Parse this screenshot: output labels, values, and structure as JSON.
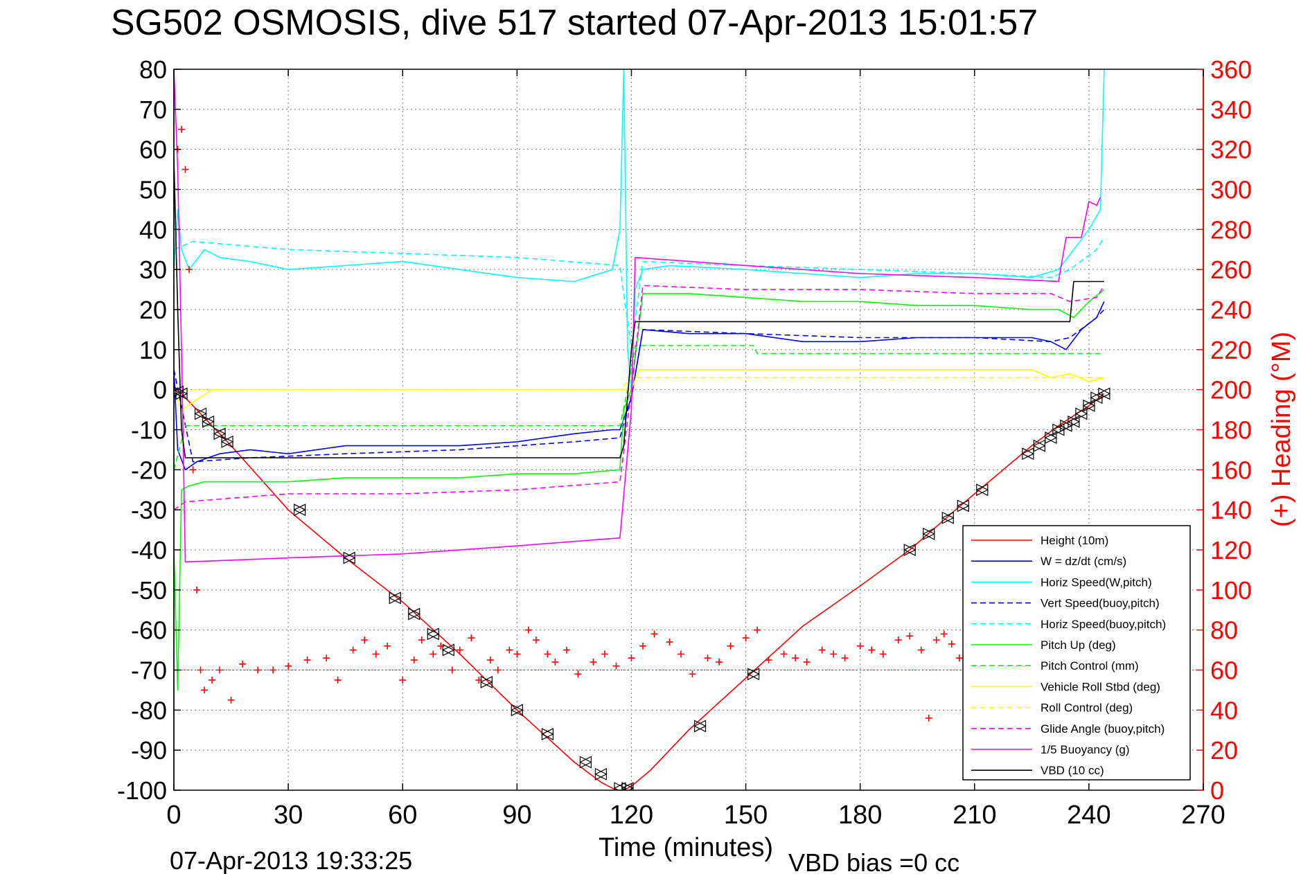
{
  "chart_data": {
    "type": "line",
    "title": "SG502 OSMOSIS, dive 517 started 07-Apr-2013 15:01:57",
    "xlabel": "Time (minutes)",
    "ylabel_right": "(+) Heading (°M)",
    "xlim": [
      0,
      270
    ],
    "ylim": [
      -100,
      80
    ],
    "ylim_right": [
      0,
      360
    ],
    "x_ticks": [
      0,
      30,
      60,
      90,
      120,
      150,
      180,
      210,
      240,
      270
    ],
    "y_ticks": [
      -100,
      -90,
      -80,
      -70,
      -60,
      -50,
      -40,
      -30,
      -20,
      -10,
      0,
      10,
      20,
      30,
      40,
      50,
      60,
      70,
      80
    ],
    "y_ticks_right": [
      0,
      20,
      40,
      60,
      80,
      100,
      120,
      140,
      160,
      180,
      200,
      220,
      240,
      260,
      280,
      300,
      320,
      340,
      360
    ],
    "grid": true,
    "legend_position": "bottom-right",
    "timestamp": "07-Apr-2013 19:33:25",
    "vbd_bias": "VBD bias =0 cc",
    "colors": {
      "red": "#ff0000",
      "blue": "#0000ff",
      "cyan": "#00ffff",
      "green": "#00ff00",
      "yellow": "#ffff00",
      "magenta": "#ff00ff",
      "black": "#000000"
    },
    "series": [
      {
        "name": "Height (10m)",
        "color": "#ff0000",
        "style": "solid",
        "x": [
          0,
          2,
          5,
          10,
          15,
          30,
          45,
          60,
          75,
          90,
          105,
          112,
          116,
          118,
          120,
          125,
          135,
          150,
          165,
          180,
          193,
          205,
          215,
          225,
          232,
          240,
          244
        ],
        "y": [
          0,
          -1,
          -4,
          -9,
          -14,
          -30,
          -42,
          -53,
          -66,
          -80,
          -93,
          -98,
          -100,
          -100,
          -99,
          -95,
          -85,
          -72,
          -59,
          -49,
          -40,
          -30,
          -22,
          -14,
          -9,
          -4,
          -1
        ]
      },
      {
        "name": "W = dz/dt (cm/s)",
        "color": "#0000ff",
        "style": "solid",
        "x": [
          0,
          1,
          3,
          6,
          12,
          20,
          30,
          45,
          60,
          75,
          90,
          105,
          115,
          117,
          120,
          123,
          135,
          150,
          165,
          180,
          195,
          210,
          225,
          230,
          234,
          238,
          242,
          244
        ],
        "y": [
          5,
          -15,
          -20,
          -18,
          -16,
          -15,
          -16,
          -14,
          -14,
          -14,
          -13,
          -11,
          -10,
          -10,
          -2,
          15,
          14,
          14,
          12,
          12,
          13,
          13,
          13,
          12,
          10,
          15,
          18,
          22
        ]
      },
      {
        "name": "Horiz Speed(W,pitch)",
        "color": "#00ffff",
        "style": "solid",
        "x": [
          0,
          1,
          2,
          4,
          8,
          12,
          20,
          30,
          45,
          60,
          75,
          90,
          105,
          115,
          117,
          118,
          119,
          120,
          121,
          123,
          130,
          150,
          165,
          180,
          195,
          210,
          225,
          232,
          236,
          240,
          243,
          244
        ],
        "y": [
          30,
          45,
          35,
          30,
          35,
          33,
          32,
          30,
          31,
          32,
          30,
          28,
          27,
          30,
          40,
          80,
          10,
          0,
          25,
          30,
          31,
          30,
          29,
          28,
          29,
          29,
          28,
          30,
          35,
          40,
          45,
          80
        ]
      },
      {
        "name": "Vert Speed(buoy,pitch)",
        "color": "#0000ff",
        "style": "dashed",
        "x": [
          0,
          5,
          20,
          45,
          75,
          105,
          117,
          120,
          123,
          150,
          180,
          210,
          230,
          235,
          242,
          244
        ],
        "y": [
          5,
          -18,
          -17,
          -16,
          -15,
          -13,
          -12,
          -2,
          15,
          14,
          13,
          13,
          12,
          13,
          18,
          20
        ]
      },
      {
        "name": "Horiz Speed(buoy,pitch)",
        "color": "#00ffff",
        "style": "dashed",
        "x": [
          0,
          5,
          30,
          60,
          90,
          117,
          120,
          123,
          150,
          180,
          210,
          230,
          235,
          242,
          244
        ],
        "y": [
          35,
          37,
          35,
          34,
          33,
          31,
          10,
          32,
          31,
          30,
          29,
          28,
          30,
          35,
          38
        ]
      },
      {
        "name": "Pitch Up (deg)",
        "color": "#00ff00",
        "style": "solid",
        "x": [
          0,
          1,
          2,
          4,
          8,
          15,
          30,
          45,
          60,
          75,
          90,
          105,
          117,
          118,
          120,
          123,
          135,
          150,
          165,
          180,
          195,
          210,
          225,
          232,
          236,
          240,
          244
        ],
        "y": [
          -40,
          -75,
          -25,
          -24,
          -23,
          -23,
          -23,
          -22,
          -22,
          -22,
          -21,
          -21,
          -20,
          -5,
          0,
          24,
          24,
          23,
          22,
          22,
          21,
          21,
          20,
          20,
          18,
          22,
          25
        ]
      },
      {
        "name": "Pitch Control (mm)",
        "color": "#00ff00",
        "style": "dashed",
        "x": [
          0,
          3,
          117,
          119,
          121,
          152,
          153,
          244
        ],
        "y": [
          -20,
          -9,
          -9,
          0,
          11,
          11,
          9,
          9
        ]
      },
      {
        "name": "Vehicle Roll Stbd (deg)",
        "color": "#ffff00",
        "style": "solid",
        "x": [
          0,
          2,
          10,
          30,
          58,
          60,
          75,
          100,
          117,
          120,
          122,
          150,
          180,
          195,
          210,
          225,
          230,
          235,
          240,
          244
        ],
        "y": [
          0,
          -5,
          0,
          0,
          0,
          0,
          0,
          0,
          0,
          0,
          5,
          5,
          5,
          5,
          5,
          5,
          3,
          4,
          2,
          3
        ]
      },
      {
        "name": "Roll Control (deg)",
        "color": "#ffff00",
        "style": "dashed",
        "x": [
          0,
          2,
          117,
          120,
          122,
          150,
          195,
          196,
          244
        ],
        "y": [
          0,
          0,
          0,
          3,
          3,
          3,
          3,
          3,
          3
        ]
      },
      {
        "name": "Glide Angle (buoy,pitch)",
        "color": "#ff00ff",
        "style": "dashed",
        "x": [
          0,
          3,
          30,
          60,
          90,
          117,
          120,
          123,
          150,
          180,
          210,
          230,
          235,
          242,
          244
        ],
        "y": [
          -30,
          -28,
          -26,
          -26,
          -25,
          -23,
          0,
          26,
          25,
          25,
          24,
          24,
          22,
          23,
          26
        ]
      },
      {
        "name": "1/5 Buoyancy (g)",
        "color": "#ff00ff",
        "style": "solid",
        "x": [
          0,
          1,
          2,
          3,
          30,
          60,
          90,
          117,
          120,
          121,
          150,
          180,
          210,
          232,
          234,
          238,
          240,
          242,
          243
        ],
        "y": [
          80,
          55,
          10,
          -43,
          -42,
          -41,
          -39,
          -37,
          -5,
          33,
          31,
          29,
          28,
          27,
          38,
          38,
          47,
          46,
          48
        ]
      },
      {
        "name": "VBD (10 cc)",
        "color": "#000000",
        "style": "solid",
        "x": [
          0,
          1,
          2,
          3,
          117,
          118,
          120,
          121,
          150,
          180,
          210,
          235,
          236,
          244
        ],
        "y": [
          58,
          20,
          -10,
          -17,
          -17,
          -14,
          10,
          17,
          17,
          17,
          17,
          17,
          27,
          27
        ]
      }
    ],
    "heading": {
      "name": "Heading (°M)",
      "color": "#ff0000",
      "marker": "+",
      "axis": "right",
      "reference_y": 60,
      "x": [
        0,
        1,
        2,
        3,
        4,
        5,
        6,
        7,
        8,
        10,
        12,
        15,
        18,
        22,
        26,
        30,
        35,
        40,
        43,
        47,
        50,
        53,
        56,
        60,
        63,
        65,
        68,
        70,
        73,
        75,
        78,
        80,
        83,
        85,
        88,
        90,
        93,
        95,
        98,
        100,
        103,
        106,
        110,
        113,
        116,
        120,
        123,
        126,
        130,
        133,
        136,
        140,
        143,
        146,
        150,
        153,
        156,
        160,
        163,
        166,
        170,
        173,
        176,
        180,
        183,
        186,
        190,
        193,
        196,
        198,
        200,
        202,
        204,
        206,
        208,
        210
      ],
      "y": [
        300,
        320,
        330,
        310,
        260,
        160,
        100,
        60,
        50,
        55,
        60,
        45,
        63,
        60,
        60,
        62,
        65,
        66,
        55,
        70,
        75,
        68,
        72,
        55,
        65,
        75,
        68,
        72,
        60,
        70,
        76,
        55,
        65,
        60,
        70,
        68,
        80,
        75,
        68,
        64,
        70,
        58,
        64,
        68,
        62,
        66,
        72,
        78,
        74,
        68,
        58,
        66,
        64,
        72,
        76,
        80,
        65,
        68,
        66,
        64,
        70,
        68,
        66,
        72,
        70,
        68,
        75,
        77,
        70,
        36,
        75,
        78,
        73,
        66,
        52,
        60
      ]
    },
    "profile_markers": {
      "x": [
        1,
        2,
        7,
        9,
        12,
        14,
        33,
        46,
        58,
        63,
        68,
        72,
        82,
        90,
        98,
        108,
        112,
        117,
        119,
        138,
        152,
        193,
        198,
        203,
        207,
        212,
        224,
        227,
        230,
        232,
        234,
        236,
        238,
        240,
        242,
        244
      ],
      "y": [
        -0.5,
        -1,
        -6,
        -8,
        -11,
        -13,
        -30,
        -42,
        -52,
        -56,
        -61,
        -65,
        -73,
        -80,
        -86,
        -93,
        -96,
        -99.5,
        -99.5,
        -84,
        -71,
        -40,
        -36,
        -32,
        -29,
        -25,
        -16,
        -14,
        -12,
        -10,
        -9,
        -8,
        -6,
        -4,
        -2,
        -1
      ]
    }
  }
}
